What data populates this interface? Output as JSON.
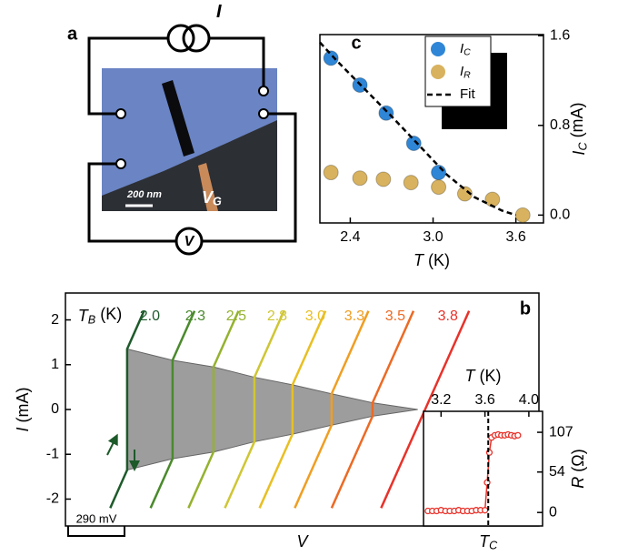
{
  "schematic": {
    "label": "a",
    "current": "I",
    "scale_bar": "200 nm",
    "gate": "V_G",
    "voltmeter": "V"
  },
  "chart_data": [
    {
      "type": "scatter",
      "panel": "c",
      "xlabel": "T (K)",
      "ylabel": "I_C (mA)",
      "xlim": [
        2.18,
        3.8
      ],
      "ylim": [
        -0.07,
        1.61
      ],
      "xticks": [
        2.4,
        {
          "value": 3,
          "label": "3.0"
        },
        3.6
      ],
      "yticks": [
        {
          "value": 0,
          "label": "0.0"
        },
        0.8,
        1.6
      ],
      "legend": "upper right",
      "series": [
        {
          "name": "I_C",
          "color": "#2f86d6",
          "x": [
            2.26,
            2.47,
            2.66,
            2.86,
            3.04
          ],
          "values": [
            1.4,
            1.16,
            0.91,
            0.64,
            0.38
          ]
        },
        {
          "name": "I_R",
          "color": "#d8b25e",
          "x": [
            2.26,
            2.47,
            2.64,
            2.84,
            3.04,
            3.23,
            3.43,
            3.65
          ],
          "values": [
            0.38,
            0.33,
            0.32,
            0.29,
            0.25,
            0.19,
            0.14,
            0.0
          ]
        },
        {
          "name": "Fit",
          "type": "line",
          "dash": true,
          "color": "#000000",
          "x": [
            2.18,
            2.3,
            2.5,
            2.7,
            2.9,
            3.1,
            3.3,
            3.5,
            3.6
          ],
          "values": [
            1.54,
            1.38,
            1.13,
            0.88,
            0.62,
            0.36,
            0.16,
            0.04,
            0.0
          ]
        }
      ]
    },
    {
      "type": "line",
      "panel": "b",
      "xlabel": "V",
      "ylabel": "I (mA)",
      "legend_title": "T_B (K)",
      "xlim": [
        0,
        2325
      ],
      "ylim": [
        -2.6,
        2.6
      ],
      "yticks": [
        -2,
        -1,
        0,
        1,
        2
      ],
      "scale_bar": {
        "value": 290,
        "label": "290 mV"
      },
      "series": [
        {
          "type": "band",
          "color": "#8c8c8c",
          "x": [
            303,
            526,
            727,
            928,
            1115,
            1307,
            1508,
            1730
          ],
          "values": [
            1.35,
            1.1,
            0.95,
            0.72,
            0.55,
            0.35,
            0.15,
            0
          ],
          "low": [
            -1.35,
            -1.1,
            -0.95,
            -0.72,
            -0.55,
            -0.35,
            -0.15,
            0
          ]
        },
        {
          "name": "2.0",
          "color": "#1d5a2a",
          "x": [
            220,
            303,
            303,
            386
          ],
          "values": [
            -2.2,
            -1.35,
            1.35,
            2.2
          ]
        },
        {
          "name": "2.3",
          "color": "#4a8a2c",
          "x": [
            418,
            526,
            526,
            634
          ],
          "values": [
            -2.2,
            -1.1,
            1.1,
            2.2
          ]
        },
        {
          "name": "2.5",
          "color": "#94b22e",
          "x": [
            604,
            727,
            727,
            850
          ],
          "values": [
            -2.2,
            -0.95,
            0.95,
            2.2
          ]
        },
        {
          "name": "2.8",
          "color": "#cfc634",
          "x": [
            783,
            928,
            928,
            1073
          ],
          "values": [
            -2.2,
            -0.72,
            0.72,
            2.2
          ]
        },
        {
          "name": "3.0",
          "color": "#e9bf22",
          "x": [
            953,
            1115,
            1115,
            1277
          ],
          "values": [
            -2.2,
            -0.55,
            0.55,
            2.2
          ]
        },
        {
          "name": "3.3",
          "color": "#f09e22",
          "x": [
            1126,
            1307,
            1307,
            1488
          ],
          "values": [
            -2.2,
            -0.35,
            0.35,
            2.2
          ]
        },
        {
          "name": "3.5",
          "color": "#ec6a24",
          "x": [
            1307,
            1508,
            1508,
            1709
          ],
          "values": [
            -2.2,
            -0.15,
            0.15,
            2.2
          ]
        },
        {
          "name": "3.8",
          "color": "#e8322a",
          "x": [
            1550,
            1766,
            1766,
            1982
          ],
          "values": [
            -2.2,
            0,
            0,
            2.2
          ]
        }
      ]
    },
    {
      "type": "line",
      "xlabel": "T (K)",
      "ylabel": "R (Ω)",
      "xlim": [
        3.04,
        4.125
      ],
      "ylim": [
        -18,
        135
      ],
      "xticks": [
        3.2,
        3.6,
        {
          "value": 4,
          "label": "4.0"
        }
      ],
      "yticks": [
        0,
        54,
        107
      ],
      "tc": 3.63,
      "tc_label": "T_C",
      "series": [
        {
          "color": "#e8322a",
          "markers": true,
          "x": [
            3.08,
            3.12,
            3.16,
            3.2,
            3.24,
            3.28,
            3.32,
            3.36,
            3.4,
            3.44,
            3.48,
            3.52,
            3.56,
            3.6,
            3.62,
            3.64,
            3.66,
            3.69,
            3.72,
            3.75,
            3.78,
            3.81,
            3.84,
            3.87,
            3.9
          ],
          "values": [
            2,
            2,
            2,
            3,
            2,
            2,
            2,
            3,
            2,
            2,
            2,
            3,
            3,
            3,
            40,
            80,
            100,
            103,
            104,
            103,
            103,
            104,
            103,
            102,
            103
          ]
        }
      ]
    }
  ]
}
